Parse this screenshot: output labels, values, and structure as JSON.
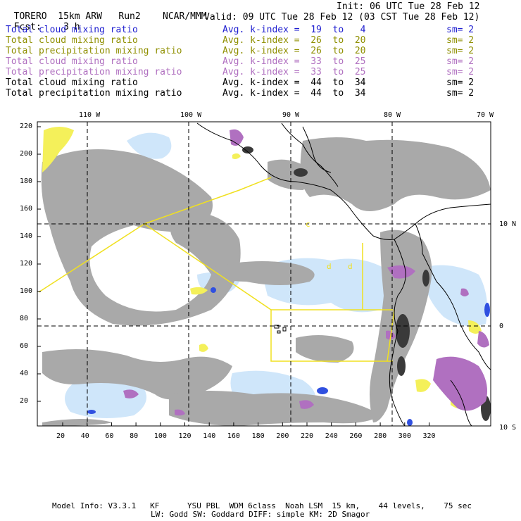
{
  "header": {
    "model": "TORERO",
    "resolution": "15km ARW",
    "run": "Run2",
    "org": "NCAR/MMM",
    "init": "Init: 06 UTC Tue 28 Feb 12",
    "fcst_label": "Fcst:",
    "fcst_value": "3 h",
    "valid": "Valid: 09 UTC Tue 28 Feb 12 (03 CST Tue 28 Feb 12)"
  },
  "legend": [
    {
      "field": "Total cloud mixing ratio",
      "kindex": "Avg. k-index =  19  to   4",
      "sm": "sm= 2",
      "color": "#1f1fd0"
    },
    {
      "field": "Total cloud mixing ratio",
      "kindex": "Avg. k-index =  26  to  20",
      "sm": "sm= 2",
      "color": "#8f8f00"
    },
    {
      "field": "Total precipitation mixing ratio",
      "kindex": "Avg. k-index =  26  to  20",
      "sm": "sm= 2",
      "color": "#8f8f00"
    },
    {
      "field": "Total cloud mixing ratio",
      "kindex": "Avg. k-index =  33  to  25",
      "sm": "sm= 2",
      "color": "#b070c0"
    },
    {
      "field": "Total precipitation mixing ratio",
      "kindex": "Avg. k-index =  33  to  25",
      "sm": "sm= 2",
      "color": "#b070c0"
    },
    {
      "field": "Total cloud mixing ratio",
      "kindex": "Avg. k-index =  44  to  34",
      "sm": "sm= 2",
      "color": "#000000"
    },
    {
      "field": "Total precipitation mixing ratio",
      "kindex": "Avg. k-index =  44  to  34",
      "sm": "sm= 2",
      "color": "#000000"
    }
  ],
  "map": {
    "lon_labels": [
      "110 W",
      "100 W",
      "90 W",
      "80 W",
      "70 W"
    ],
    "lat_labels": [
      "10 N",
      "0",
      "10 S"
    ],
    "y_ticks": [
      "220",
      "200",
      "180",
      "160",
      "140",
      "120",
      "100",
      "80",
      "60",
      "40",
      "20"
    ],
    "x_ticks": [
      "20",
      "40",
      "60",
      "80",
      "100",
      "120",
      "140",
      "160",
      "180",
      "200",
      "220",
      "240",
      "260",
      "280",
      "300",
      "320"
    ],
    "colors": {
      "gray": "#a9a9a9",
      "dark": "#3a3a3a",
      "blue_light": "#cfe6fa",
      "blue": "#3050e0",
      "yellow": "#f4f05a",
      "purple": "#b070c0",
      "boundary": "#f0e020"
    },
    "domain_letters": [
      "c",
      "d",
      "d"
    ]
  },
  "footer": {
    "line1": "Model Info: V3.3.1   KF      YSU PBL  WDM 6class  Noah LSM  15 km,    44 levels,    75 sec",
    "line2": "LW: Godd SW: Goddard DIFF: simple KM: 2D Smagor"
  }
}
